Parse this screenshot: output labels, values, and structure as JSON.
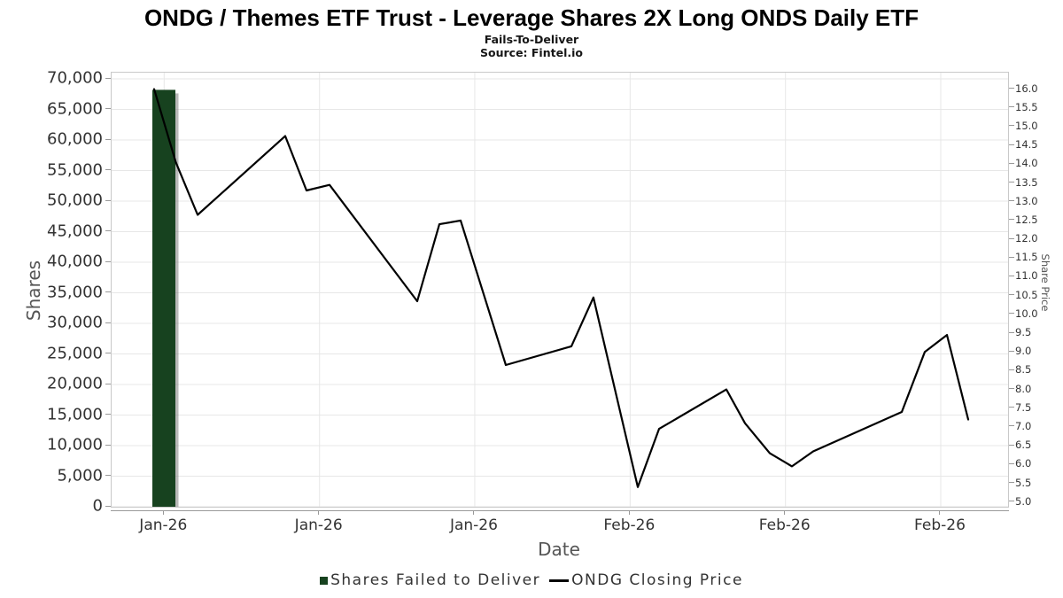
{
  "header": {
    "title": "ONDG / Themes ETF Trust - Leverage Shares 2X Long ONDS Daily ETF",
    "subtitle": "Fails-To-Deliver",
    "source": "Source: Fintel.io"
  },
  "chart_data": {
    "type": "combo-bar-line",
    "title": "ONDG / Themes ETF Trust - Leverage Shares 2X Long ONDS Daily ETF",
    "subtitle": "Fails-To-Deliver",
    "source": "Source: Fintel.io",
    "grid": "on",
    "x_axis": {
      "label": "Date",
      "ticks": [
        {
          "pos": 0.0586,
          "label": "Jan-26"
        },
        {
          "pos": 0.2319,
          "label": "Jan-26"
        },
        {
          "pos": 0.4051,
          "label": "Jan-26"
        },
        {
          "pos": 0.5784,
          "label": "Feb-26"
        },
        {
          "pos": 0.7517,
          "label": "Feb-26"
        },
        {
          "pos": 0.9249,
          "label": "Feb-26"
        }
      ]
    },
    "y_axis_left": {
      "label": "Shares",
      "min": 0,
      "max": 70000,
      "step": 5000,
      "tick_labels_top_to_bottom": [
        "70,000",
        "65,000",
        "60,000",
        "55,000",
        "50,000",
        "45,000",
        "40,000",
        "35,000",
        "30,000",
        "25,000",
        "20,000",
        "15,000",
        "10,000",
        "5,000",
        "0"
      ]
    },
    "y_axis_right": {
      "label": "Share Price",
      "min": 5.0,
      "max": 16.0,
      "step": 0.5,
      "tick_labels_top_to_bottom": [
        "16.0",
        "15.5",
        "15.0",
        "14.5",
        "14.0",
        "13.5",
        "13.0",
        "12.5",
        "12.0",
        "11.5",
        "11.0",
        "10.5",
        "10.0",
        "9.5",
        "9.0",
        "8.5",
        "8.0",
        "7.5",
        "7.0",
        "6.5",
        "6.0",
        "5.5",
        "5.0"
      ]
    },
    "series": [
      {
        "name": "Shares Failed to Deliver",
        "type": "bar",
        "color": "#17421f",
        "y_axis": "left",
        "points": [
          {
            "x": 0.0583,
            "shares": 68200
          }
        ],
        "bar_width_frac": 0.0257
      },
      {
        "name": "ONDG Closing Price",
        "type": "line",
        "color": "#000000",
        "y_axis": "right",
        "points": [
          {
            "x": 0.0474,
            "price": 16.0
          },
          {
            "x": 0.0716,
            "price": 14.05
          },
          {
            "x": 0.0959,
            "price": 12.65
          },
          {
            "x": 0.1937,
            "price": 14.75
          },
          {
            "x": 0.2174,
            "price": 13.3
          },
          {
            "x": 0.2431,
            "price": 13.45
          },
          {
            "x": 0.3409,
            "price": 10.35
          },
          {
            "x": 0.3656,
            "price": 12.4
          },
          {
            "x": 0.3893,
            "price": 12.5
          },
          {
            "x": 0.4397,
            "price": 8.65
          },
          {
            "x": 0.5128,
            "price": 9.15
          },
          {
            "x": 0.5375,
            "price": 10.45
          },
          {
            "x": 0.587,
            "price": 5.4
          },
          {
            "x": 0.6107,
            "price": 6.95
          },
          {
            "x": 0.6858,
            "price": 8.0
          },
          {
            "x": 0.7065,
            "price": 7.1
          },
          {
            "x": 0.7342,
            "price": 6.3
          },
          {
            "x": 0.7589,
            "price": 5.95
          },
          {
            "x": 0.7826,
            "price": 6.35
          },
          {
            "x": 0.8814,
            "price": 7.4
          },
          {
            "x": 0.9071,
            "price": 9.0
          },
          {
            "x": 0.9318,
            "price": 9.45
          },
          {
            "x": 0.9555,
            "price": 7.2
          }
        ]
      }
    ]
  },
  "legend": {
    "items": [
      {
        "label": "Shares Failed to Deliver",
        "marker": "square",
        "color": "#17421f"
      },
      {
        "label": "ONDG Closing Price",
        "marker": "dash",
        "color": "#000000"
      }
    ]
  },
  "colors": {
    "bar": "#17421f",
    "line": "#000000",
    "gridline": "#e7e7e7",
    "axis": "#999999",
    "tick_text": "#333333",
    "axis_title": "#555555"
  }
}
